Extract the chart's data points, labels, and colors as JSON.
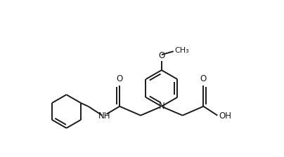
{
  "bg_color": "#ffffff",
  "line_color": "#1a1a1a",
  "line_width": 1.4,
  "font_size": 8.5,
  "figsize": [
    4.04,
    2.24
  ],
  "dpi": 100,
  "xlim": [
    0,
    4.04
  ],
  "ylim": [
    0,
    2.24
  ]
}
